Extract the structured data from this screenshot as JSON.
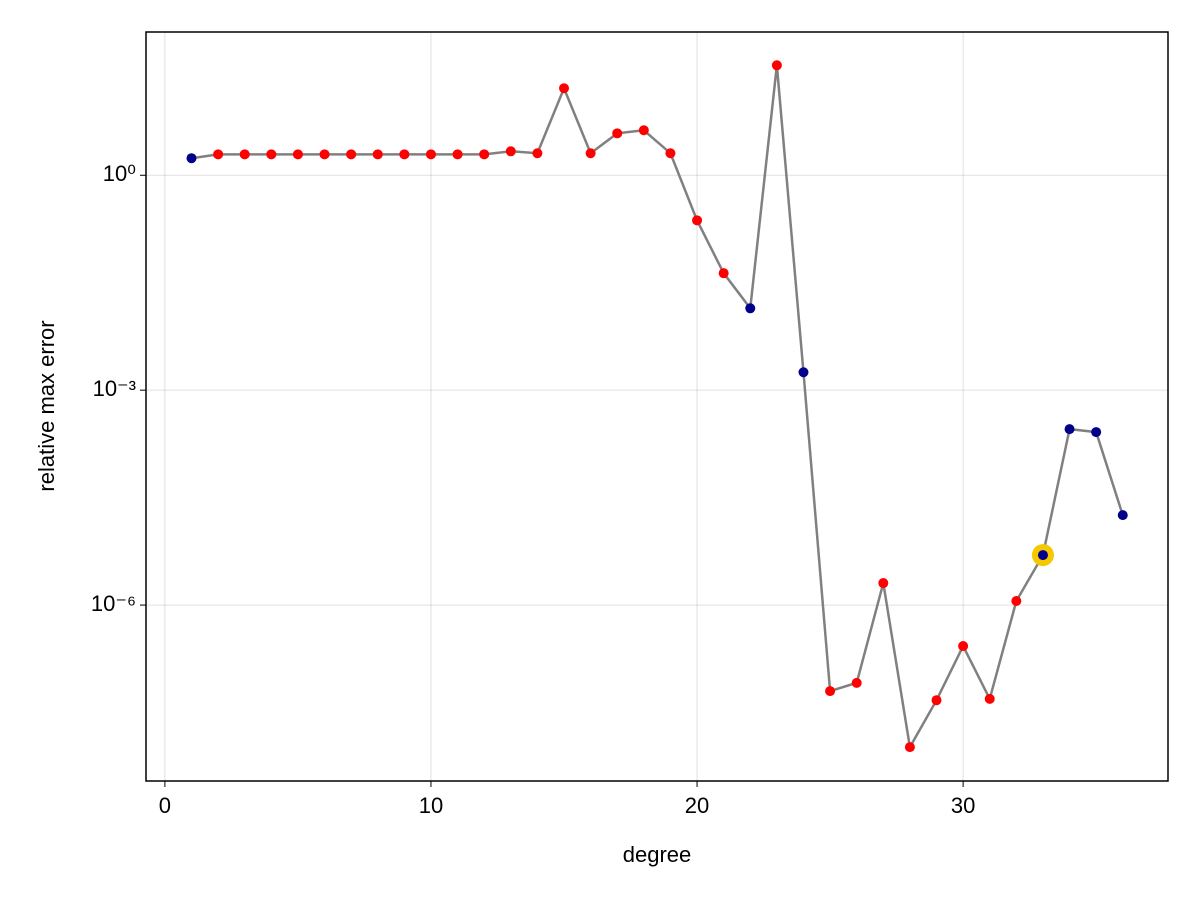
{
  "chart_data": {
    "type": "line",
    "xlabel": "degree",
    "ylabel": "relative max error",
    "x": [
      1,
      2,
      3,
      4,
      5,
      6,
      7,
      8,
      9,
      10,
      11,
      12,
      13,
      14,
      15,
      16,
      17,
      18,
      19,
      20,
      21,
      22,
      23,
      24,
      25,
      26,
      27,
      28,
      29,
      30,
      31,
      32,
      33,
      34,
      35,
      36
    ],
    "series": [
      {
        "line_color": "#808080",
        "values": [
          1.73,
          1.96,
          1.96,
          1.96,
          1.96,
          1.96,
          1.96,
          1.96,
          1.96,
          1.96,
          1.96,
          1.96,
          2.16,
          2.03,
          16.4,
          2.03,
          3.85,
          4.25,
          2.03,
          0.235,
          0.043,
          0.0139,
          34.3,
          0.00178,
          6.3e-08,
          8.2e-08,
          2.03e-06,
          1.04e-08,
          4.7e-08,
          2.68e-07,
          4.9e-08,
          1.14e-06,
          4.99e-06,
          0.000286,
          0.00026,
          1.8e-05
        ],
        "marker_colors": [
          "#00008b",
          "#ff0000",
          "#ff0000",
          "#ff0000",
          "#ff0000",
          "#ff0000",
          "#ff0000",
          "#ff0000",
          "#ff0000",
          "#ff0000",
          "#ff0000",
          "#ff0000",
          "#ff0000",
          "#ff0000",
          "#ff0000",
          "#ff0000",
          "#ff0000",
          "#ff0000",
          "#ff0000",
          "#ff0000",
          "#ff0000",
          "#00008b",
          "#ff0000",
          "#00008b",
          "#ff0000",
          "#ff0000",
          "#ff0000",
          "#ff0000",
          "#ff0000",
          "#ff0000",
          "#ff0000",
          "#ff0000",
          "#00008b",
          "#00008b",
          "#00008b",
          "#00008b"
        ]
      }
    ],
    "highlight": {
      "index": 32,
      "color": "#f5c800"
    },
    "xlim": [
      -0.71,
      37.7
    ],
    "xticks": [
      0,
      10,
      20,
      30
    ],
    "ylog": true,
    "ylim": [
      3.5e-09,
      100
    ],
    "yticks": [
      {
        "value": 1e-06,
        "label": "10⁻⁶"
      },
      {
        "value": 0.001,
        "label": "10⁻³"
      },
      {
        "value": 1,
        "label": "10⁰"
      }
    ],
    "grid": true
  }
}
